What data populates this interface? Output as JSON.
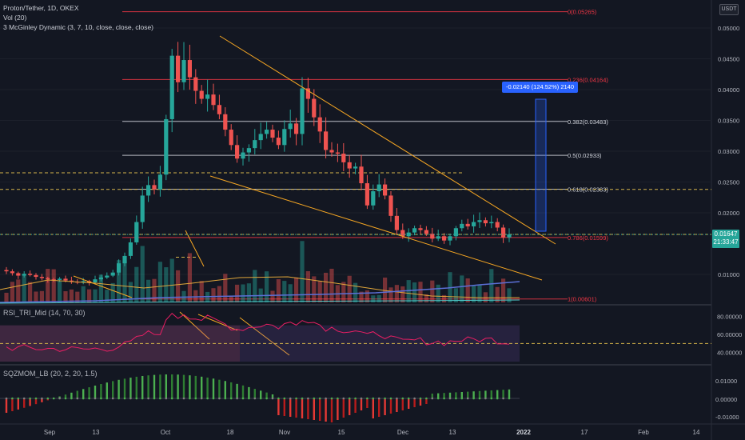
{
  "legend": {
    "symbol": "Proton/Tether, 1D, OKEX",
    "vol": "Vol (20)",
    "mcginley": "3 McGinley Dynamic (3, 7, 10, close, close, close)"
  },
  "currency_button": "USDT",
  "price_axis_labels": [
    "0.05000",
    "0.04500",
    "0.04000",
    "0.03500",
    "0.03000",
    "0.02500",
    "0.02000",
    "0.01000"
  ],
  "current_price": {
    "value": "0.01647",
    "countdown": "21:33:47"
  },
  "fib_levels": [
    {
      "label": "0(0.05265)",
      "color": "#f23645"
    },
    {
      "label": "0.236(0.04164)",
      "color": "#f23645"
    },
    {
      "label": "0.382(0.03483)",
      "color": "#d1d4dc"
    },
    {
      "label": "0.5(0.02933)",
      "color": "#d1d4dc"
    },
    {
      "label": "0.618(0.02383)",
      "color": "#d1d4dc"
    },
    {
      "label": "0.786(0.01599)",
      "color": "#f23645"
    },
    {
      "label": "1(0.00601)",
      "color": "#f23645"
    }
  ],
  "measure_label": "-0.02140 (124.52%) 2140",
  "rsi": {
    "label": "RSI_TRI_Mid (14, 70, 30)",
    "axis": [
      "80.00000",
      "60.00000",
      "40.00000"
    ]
  },
  "sqz": {
    "label": "SQZMOM_LB (20, 2, 20, 1.5)",
    "axis": [
      "0.01000",
      "0.00000",
      "-0.01000"
    ]
  },
  "time_axis": [
    "Sep",
    "13",
    "Oct",
    "18",
    "Nov",
    "15",
    "Dec",
    "13",
    "2022",
    "17",
    "Feb",
    "14"
  ],
  "colors": {
    "bg": "#131722",
    "up": "#26a69a",
    "down": "#ef5350",
    "fib_red": "#f23645",
    "trend": "#f5a623",
    "accent": "#2962ff"
  },
  "chart_data": {
    "type": "candlestick",
    "title": "Proton/Tether, 1D, OKEX",
    "ylim": [
      0.0055,
      0.0535
    ],
    "x_ticks": [
      "Sep",
      "13",
      "Oct",
      "18",
      "Nov",
      "15",
      "Dec",
      "13",
      "2022",
      "17",
      "Feb",
      "14"
    ],
    "close_series_approx": [
      0.0105,
      0.0102,
      0.0098,
      0.0101,
      0.0099,
      0.0096,
      0.0094,
      0.0092,
      0.0091,
      0.0093,
      0.009,
      0.0088,
      0.0087,
      0.0089,
      0.0087,
      0.0092,
      0.0095,
      0.0098,
      0.0103,
      0.0118,
      0.013,
      0.0152,
      0.0185,
      0.0228,
      0.0245,
      0.0238,
      0.0262,
      0.0352,
      0.0455,
      0.0412,
      0.0448,
      0.042,
      0.0398,
      0.0385,
      0.0392,
      0.0375,
      0.036,
      0.0335,
      0.031,
      0.0288,
      0.0298,
      0.0305,
      0.0318,
      0.0328,
      0.0335,
      0.0322,
      0.031,
      0.0336,
      0.0345,
      0.0328,
      0.0402,
      0.0385,
      0.0355,
      0.0332,
      0.0302,
      0.0298,
      0.0296,
      0.0282,
      0.0272,
      0.0275,
      0.0248,
      0.0212,
      0.0235,
      0.0246,
      0.0228,
      0.0195,
      0.0172,
      0.0162,
      0.0168,
      0.0175,
      0.0172,
      0.0166,
      0.0158,
      0.0162,
      0.0155,
      0.0162,
      0.0175,
      0.0182,
      0.0178,
      0.0185,
      0.0188,
      0.0183,
      0.0185,
      0.0176,
      0.016,
      0.0165
    ],
    "rsi_overbought": 70,
    "rsi_oversold": 30
  }
}
